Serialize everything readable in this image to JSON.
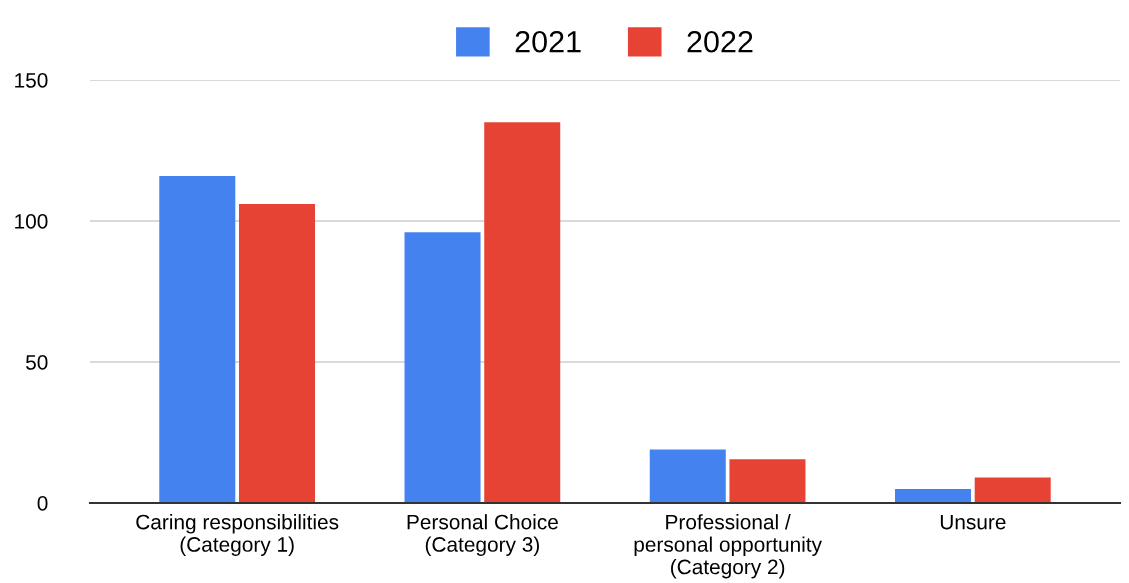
{
  "chart_data": {
    "type": "bar",
    "categories": [
      "Caring responsibilities\n(Category 1)",
      "Personal Choice\n(Category 3)",
      "Professional /\npersonal opportunity\n(Category 2)",
      "Unsure"
    ],
    "series": [
      {
        "name": "2021",
        "color": "#4482ef",
        "values": [
          116,
          96,
          19,
          5
        ]
      },
      {
        "name": "2022",
        "color": "#e64335",
        "values": [
          106,
          135,
          15.5,
          9
        ]
      }
    ],
    "ylim": [
      0,
      150
    ],
    "yticks": [
      0,
      50,
      100,
      150
    ],
    "grid": "y",
    "legend": "top"
  }
}
